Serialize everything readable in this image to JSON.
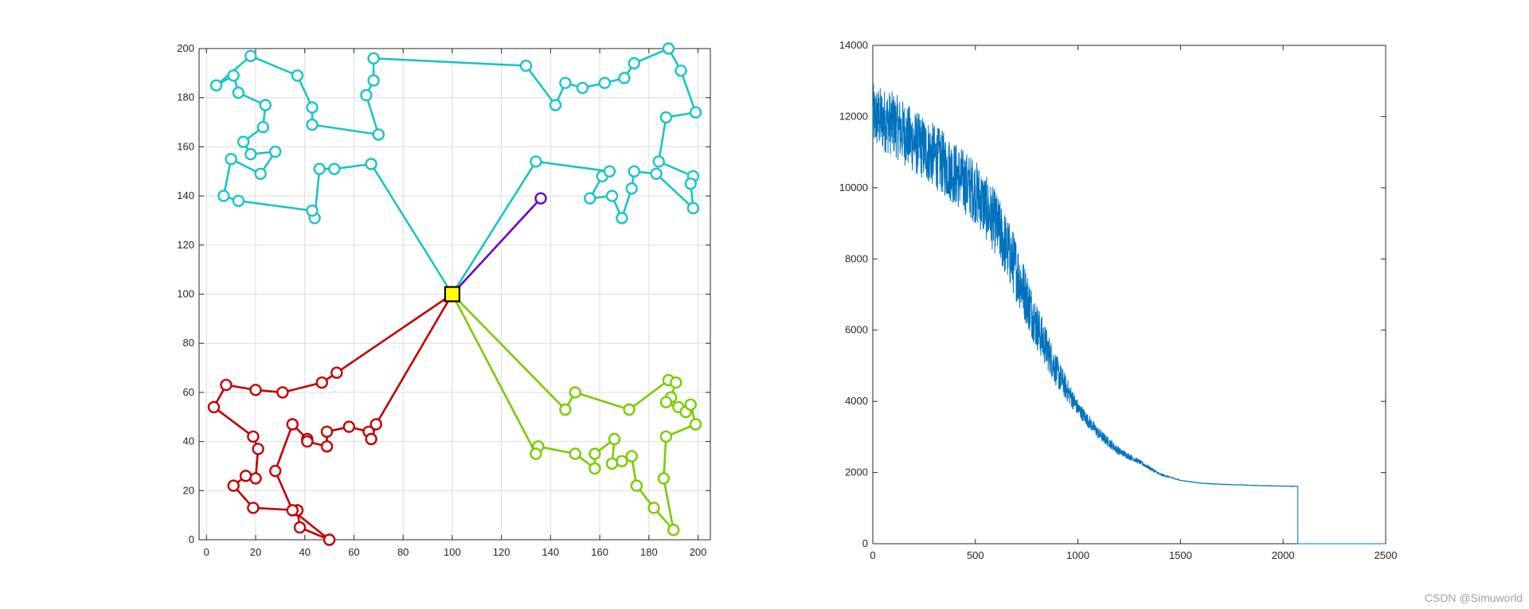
{
  "watermark": "CSDN @Simuworld",
  "chart_data": [
    {
      "type": "line",
      "title": "",
      "xlabel": "",
      "ylabel": "",
      "xlim": [
        -3,
        205
      ],
      "ylim": [
        0,
        200
      ],
      "xticks": [
        0,
        20,
        40,
        60,
        80,
        100,
        120,
        140,
        160,
        180,
        200
      ],
      "yticks": [
        0,
        20,
        40,
        60,
        80,
        100,
        120,
        140,
        160,
        180,
        200
      ],
      "grid": true,
      "depot": {
        "x": 100,
        "y": 100,
        "marker": "square",
        "color": "#ffff00"
      },
      "series": [
        {
          "color": "#1ac3c8",
          "segments": [
            [
              [
                100,
                100
              ],
              [
                67,
                153
              ],
              [
                52,
                151
              ],
              [
                46,
                151
              ],
              [
                44,
                131
              ],
              [
                43,
                134
              ],
              [
                13,
                138
              ],
              [
                7,
                140
              ],
              [
                10,
                155
              ],
              [
                22,
                149
              ],
              [
                28,
                158
              ],
              [
                18,
                157
              ],
              [
                15,
                162
              ],
              [
                23,
                168
              ],
              [
                24,
                177
              ],
              [
                13,
                182
              ],
              [
                11,
                189
              ],
              [
                4,
                185
              ],
              [
                18,
                197
              ],
              [
                37,
                189
              ],
              [
                43,
                176
              ],
              [
                43,
                169
              ],
              [
                70,
                165
              ],
              [
                65,
                181
              ],
              [
                68,
                187
              ],
              [
                68,
                196
              ],
              [
                130,
                193
              ],
              [
                142,
                177
              ],
              [
                146,
                186
              ],
              [
                153,
                184
              ],
              [
                162,
                186
              ],
              [
                170,
                188
              ],
              [
                174,
                194
              ],
              [
                188,
                200
              ],
              [
                193,
                191
              ],
              [
                199,
                174
              ],
              [
                187,
                172
              ],
              [
                184,
                154
              ],
              [
                198,
                148
              ],
              [
                197,
                145
              ],
              [
                198,
                135
              ],
              [
                183,
                149
              ],
              [
                174,
                150
              ],
              [
                173,
                143
              ],
              [
                169,
                131
              ],
              [
                165,
                140
              ],
              [
                156,
                139
              ],
              [
                161,
                148
              ],
              [
                164,
                150
              ],
              [
                134,
                154
              ],
              [
                100,
                100
              ]
            ]
          ]
        },
        {
          "color": "#c00000",
          "segments": [
            [
              [
                100,
                100
              ],
              [
                53,
                68
              ],
              [
                47,
                64
              ],
              [
                31,
                60
              ],
              [
                20,
                61
              ],
              [
                8,
                63
              ],
              [
                3,
                54
              ],
              [
                19,
                42
              ],
              [
                21,
                37
              ],
              [
                20,
                25
              ],
              [
                16,
                26
              ],
              [
                11,
                22
              ],
              [
                19,
                13
              ],
              [
                37,
                12
              ],
              [
                38,
                5
              ],
              [
                50,
                0
              ],
              [
                35,
                12
              ],
              [
                28,
                28
              ],
              [
                35,
                47
              ],
              [
                41,
                41
              ],
              [
                41,
                40
              ],
              [
                49,
                38
              ],
              [
                49,
                44
              ],
              [
                58,
                46
              ],
              [
                66,
                44
              ],
              [
                67,
                41
              ],
              [
                69,
                47
              ],
              [
                100,
                100
              ]
            ]
          ]
        },
        {
          "color": "#77cc00",
          "segments": [
            [
              [
                100,
                100
              ],
              [
                146,
                53
              ],
              [
                150,
                60
              ],
              [
                172,
                53
              ],
              [
                188,
                65
              ],
              [
                191,
                64
              ],
              [
                189,
                58
              ],
              [
                187,
                56
              ],
              [
                192,
                54
              ],
              [
                195,
                52
              ],
              [
                197,
                55
              ],
              [
                199,
                47
              ],
              [
                187,
                42
              ],
              [
                186,
                25
              ],
              [
                190,
                4
              ],
              [
                182,
                13
              ],
              [
                175,
                22
              ],
              [
                173,
                34
              ],
              [
                169,
                32
              ],
              [
                165,
                31
              ],
              [
                166,
                41
              ],
              [
                158,
                35
              ],
              [
                158,
                29
              ],
              [
                150,
                35
              ],
              [
                135,
                38
              ],
              [
                134,
                35
              ],
              [
                100,
                100
              ]
            ]
          ]
        },
        {
          "color": "#6600cc",
          "segments": [
            [
              [
                100,
                100
              ],
              [
                136,
                139
              ]
            ]
          ]
        }
      ]
    },
    {
      "type": "line",
      "title": "",
      "xlabel": "",
      "ylabel": "",
      "xlim": [
        0,
        2500
      ],
      "ylim": [
        0,
        14000
      ],
      "xticks": [
        0,
        500,
        1000,
        1500,
        2000,
        2500
      ],
      "yticks": [
        0,
        2000,
        4000,
        6000,
        8000,
        10000,
        12000,
        14000
      ],
      "grid": false,
      "series": [
        {
          "color": "#0072bd",
          "trend": [
            [
              0,
              12000
            ],
            [
              100,
              11800
            ],
            [
              200,
              11300
            ],
            [
              300,
              10900
            ],
            [
              400,
              10400
            ],
            [
              500,
              9900
            ],
            [
              600,
              9000
            ],
            [
              700,
              7700
            ],
            [
              800,
              6100
            ],
            [
              900,
              4800
            ],
            [
              1000,
              3800
            ],
            [
              1100,
              3100
            ],
            [
              1200,
              2600
            ],
            [
              1300,
              2300
            ],
            [
              1400,
              1950
            ],
            [
              1500,
              1780
            ],
            [
              1600,
              1700
            ],
            [
              1700,
              1670
            ],
            [
              1800,
              1650
            ],
            [
              1900,
              1630
            ],
            [
              2000,
              1620
            ],
            [
              2070,
              1610
            ]
          ],
          "drop_to_zero_at": 2072,
          "zero_until": 2500,
          "iterations": 2072
        }
      ]
    }
  ]
}
